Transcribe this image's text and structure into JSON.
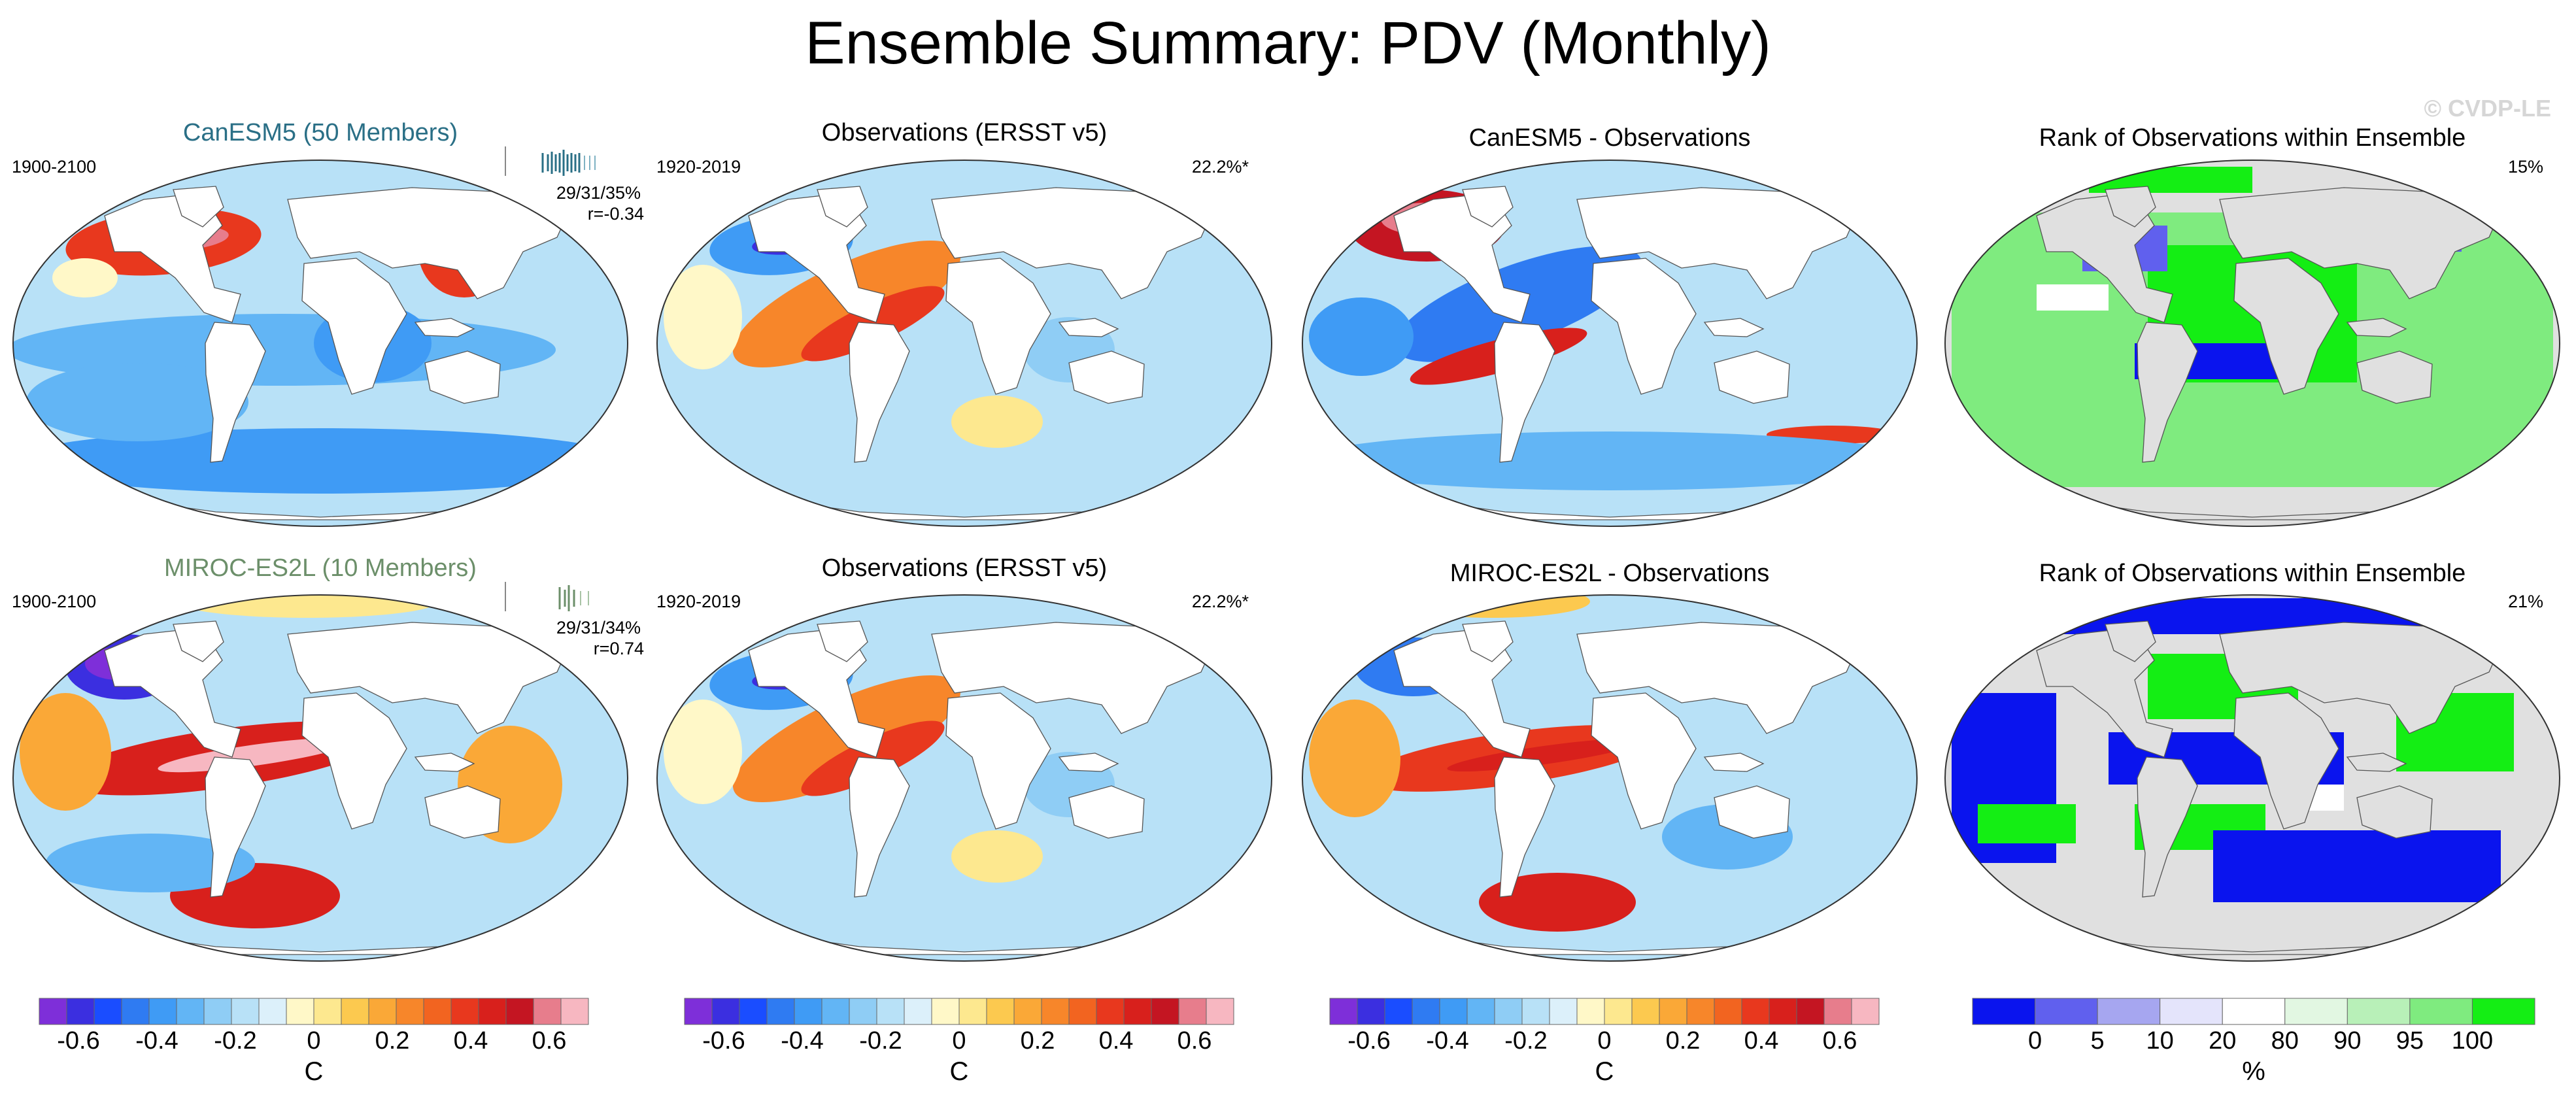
{
  "title": "Ensemble Summary: PDV (Monthly)",
  "watermark": "© CVDP-LE",
  "colors": {
    "diverging": [
      "#7e2fd9",
      "#3b2fe0",
      "#1a4dff",
      "#2f7bf2",
      "#3f9bf5",
      "#62b5f5",
      "#8fcdf5",
      "#b8e1f7",
      "#dcf0fa",
      "#fff8c8",
      "#fde88f",
      "#fcc94f",
      "#faa837",
      "#f7862a",
      "#f26420",
      "#e8381e",
      "#d8201c",
      "#c41522",
      "#e77d8c",
      "#f7b7c1"
    ],
    "rank": [
      "#0a14ee",
      "#6060ee",
      "#a6a6f0",
      "#e4e4fb",
      "#ffffff",
      "#e2f7e2",
      "#b8f0b8",
      "#7feb7f",
      "#14ee14"
    ],
    "land": "#ffffff",
    "rank_land": "#e0e0e0"
  },
  "row1": {
    "model_title": "CanESM5 (50 Members)",
    "model_years": "1900-2100",
    "spread_stats": "29/31/35%",
    "spread_r": "r=-0.34",
    "obs_title": "Observations (ERSST v5)",
    "obs_years": "1920-2019",
    "obs_pct": "22.2%*",
    "diff_title": "CanESM5 - Observations",
    "rank_title": "Rank of Observations within Ensemble",
    "rank_pct": "15%"
  },
  "row2": {
    "model_title": "MIROC-ES2L (10 Members)",
    "model_years": "1900-2100",
    "spread_stats": "29/31/34%",
    "spread_r": "r=0.74",
    "obs_title": "Observations (ERSST v5)",
    "obs_years": "1920-2019",
    "obs_pct": "22.2%*",
    "diff_title": "MIROC-ES2L - Observations",
    "rank_title": "Rank of Observations within Ensemble",
    "rank_pct": "21%"
  },
  "colorbar_temp": {
    "labels": [
      "-0.6",
      "-0.4",
      "-0.2",
      "0",
      "0.2",
      "0.4",
      "0.6"
    ],
    "units": "C"
  },
  "colorbar_rank": {
    "labels": [
      "0",
      "5",
      "10",
      "20",
      "80",
      "90",
      "95",
      "100"
    ],
    "units": "%"
  },
  "chart_data": [
    {
      "type": "heatmap",
      "title": "CanESM5 (50 Members)",
      "period": "1900-2100",
      "units": "C",
      "range": [
        -0.7,
        0.7
      ],
      "pattern": "warm North Pacific and North Atlantic, cool tropics and Southern Ocean"
    },
    {
      "type": "heatmap",
      "title": "Observations (ERSST v5)",
      "period": "1920-2019",
      "units": "C",
      "range": [
        -0.7,
        0.7
      ],
      "pattern": "cold North Pacific core, warm tropical eastern Pacific"
    },
    {
      "type": "heatmap",
      "title": "CanESM5 - Observations",
      "units": "C",
      "range": [
        -0.7,
        0.7
      ]
    },
    {
      "type": "heatmap",
      "title": "Rank of Observations within Ensemble",
      "units": "%",
      "range": [
        0,
        100
      ],
      "value": "15%"
    },
    {
      "type": "heatmap",
      "title": "MIROC-ES2L (10 Members)",
      "period": "1900-2100",
      "units": "C",
      "range": [
        -0.7,
        0.7
      ],
      "pattern": "strong cold North Pacific, very warm tropical Pacific"
    },
    {
      "type": "heatmap",
      "title": "Observations (ERSST v5)",
      "period": "1920-2019",
      "units": "C",
      "range": [
        -0.7,
        0.7
      ]
    },
    {
      "type": "heatmap",
      "title": "MIROC-ES2L - Observations",
      "units": "C",
      "range": [
        -0.7,
        0.7
      ]
    },
    {
      "type": "heatmap",
      "title": "Rank of Observations within Ensemble",
      "units": "%",
      "range": [
        0,
        100
      ],
      "value": "21%"
    }
  ]
}
